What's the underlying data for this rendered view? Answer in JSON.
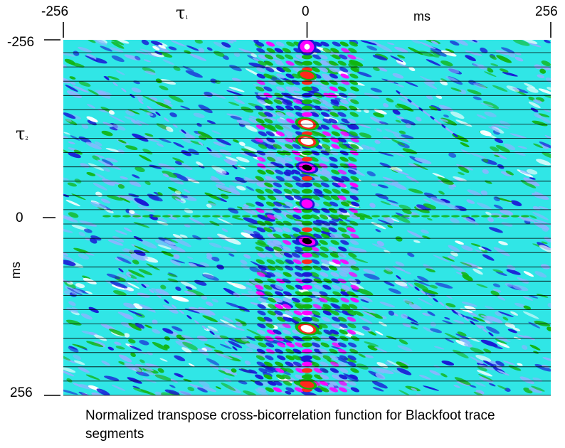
{
  "figure": {
    "caption": "Normalized transpose cross-bicorrelation function for Blackfoot trace segments"
  },
  "chart_data": {
    "type": "heatmap",
    "title": "",
    "x_axis": {
      "symbol": "τ",
      "symbol_subscript": "1",
      "unit": "ms",
      "range": [
        -256,
        256
      ],
      "tick_labels": [
        "-256",
        "0",
        "256"
      ],
      "position": "top"
    },
    "y_axis": {
      "symbol": "τ",
      "symbol_subscript": "2",
      "unit": "ms",
      "range": [
        -256,
        256
      ],
      "tick_labels": [
        "-256",
        "0",
        "256"
      ]
    },
    "trace_lines": 25,
    "colormap": [
      "#ffffff",
      "#ff2a1c",
      "#11b411",
      "#30e6e6",
      "#8cb4ff",
      "#1a1ad6",
      "#ff00ff",
      "#000000"
    ],
    "background_color": "#30e6e6",
    "features": [
      {
        "tau1": 0,
        "tau2": -246,
        "value": "magenta-max"
      },
      {
        "tau1": 0,
        "tau2": -205,
        "value": "red-peak"
      },
      {
        "tau1": 0,
        "tau2": -135,
        "value": "white-peak"
      },
      {
        "tau1": 0,
        "tau2": -110,
        "value": "white-peak"
      },
      {
        "tau1": 0,
        "tau2": -72,
        "value": "black-min"
      },
      {
        "tau1": 0,
        "tau2": -20,
        "value": "magenta-min"
      },
      {
        "tau1": 0,
        "tau2": 34,
        "value": "black-min"
      },
      {
        "tau1": 0,
        "tau2": 160,
        "value": "white-peak"
      },
      {
        "tau1": 0,
        "tau2": 240,
        "value": "red-peak"
      }
    ]
  }
}
